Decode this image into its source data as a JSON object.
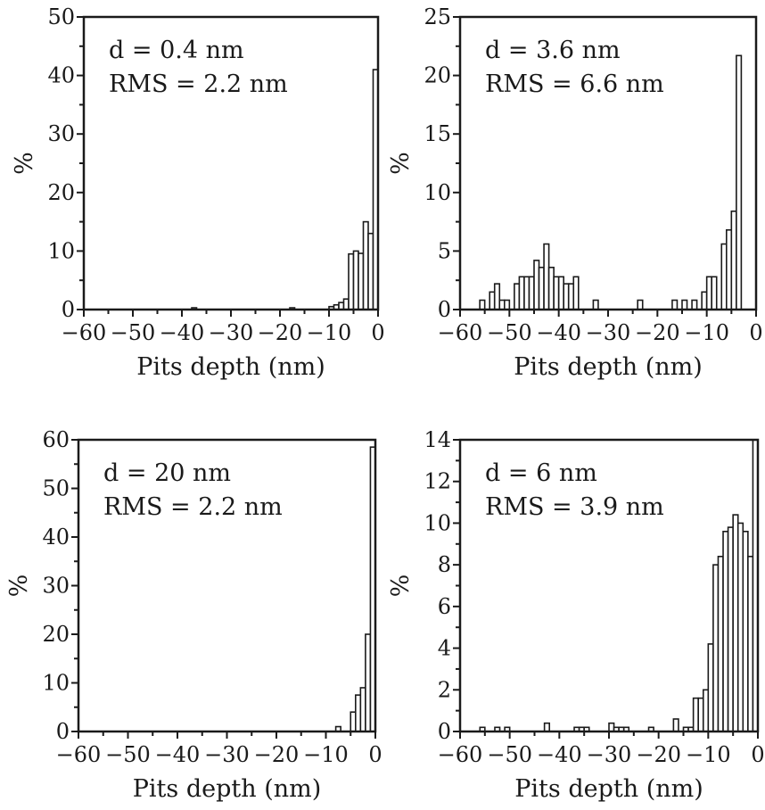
{
  "chart_data": [
    {
      "type": "bar",
      "annotation": [
        "d = 0.4 nm",
        "RMS = 2.2 nm"
      ],
      "xlabel": "Pits depth (nm)",
      "ylabel": "%",
      "xlim": [
        -60,
        0
      ],
      "ylim": [
        0,
        50
      ],
      "xticks": [
        -60,
        -50,
        -40,
        -30,
        -20,
        -10,
        0
      ],
      "yticks": [
        0,
        10,
        20,
        30,
        40,
        50
      ],
      "x_tick_labels": [
        "−60",
        "−50",
        "−40",
        "−30",
        "−20",
        "−10",
        "0"
      ],
      "y_tick_labels": [
        "0",
        "10",
        "20",
        "30",
        "40",
        "50"
      ],
      "bin_width": 1,
      "x": [
        -38,
        -18,
        -10,
        -9,
        -8,
        -7,
        -6,
        -5,
        -4,
        -3,
        -2,
        -1
      ],
      "values": [
        0.3,
        0.3,
        0.5,
        0.8,
        1.2,
        1.8,
        9.5,
        10,
        9.6,
        15,
        13,
        41
      ]
    },
    {
      "type": "bar",
      "annotation": [
        "d = 3.6 nm",
        "RMS = 6.6 nm"
      ],
      "xlabel": "Pits depth (nm)",
      "ylabel": "%",
      "xlim": [
        -60,
        0
      ],
      "ylim": [
        0,
        25
      ],
      "xticks": [
        -60,
        -50,
        -40,
        -30,
        -20,
        -10,
        0
      ],
      "yticks": [
        0,
        5,
        10,
        15,
        20,
        25
      ],
      "x_tick_labels": [
        "−60",
        "−50",
        "−40",
        "−30",
        "−20",
        "−10",
        "0"
      ],
      "y_tick_labels": [
        "0",
        "5",
        "10",
        "15",
        "20",
        "25"
      ],
      "bin_width": 1,
      "x": [
        -56,
        -54,
        -53,
        -52,
        -51,
        -49,
        -48,
        -47,
        -46,
        -45,
        -44,
        -43,
        -42,
        -41,
        -40,
        -39,
        -38,
        -37,
        -33,
        -24,
        -17,
        -15,
        -13,
        -11,
        -10,
        -9,
        -7,
        -6,
        -5,
        -4
      ],
      "values": [
        0.8,
        1.5,
        2.2,
        0.8,
        0.8,
        2.2,
        2.8,
        2.8,
        2.8,
        4.2,
        3.6,
        5.6,
        3.6,
        2.8,
        2.8,
        2.2,
        2.2,
        2.8,
        0.8,
        0.8,
        0.8,
        0.8,
        0.8,
        1.5,
        2.8,
        2.8,
        5.6,
        6.8,
        8.4,
        21.7
      ]
    },
    {
      "type": "bar",
      "annotation": [
        "d = 20 nm",
        "RMS = 2.2 nm"
      ],
      "xlabel": "Pits depth (nm)",
      "ylabel": "%",
      "xlim": [
        -60,
        0
      ],
      "ylim": [
        0,
        60
      ],
      "xticks": [
        -60,
        -50,
        -40,
        -30,
        -20,
        -10,
        0
      ],
      "yticks": [
        0,
        10,
        20,
        30,
        40,
        50,
        60
      ],
      "x_tick_labels": [
        "−60",
        "−50",
        "−40",
        "−30",
        "−20",
        "−10",
        "0"
      ],
      "y_tick_labels": [
        "0",
        "10",
        "20",
        "30",
        "40",
        "50",
        "60"
      ],
      "bin_width": 1,
      "x": [
        -8,
        -5,
        -4,
        -3,
        -2,
        -1
      ],
      "values": [
        1,
        4,
        7.5,
        9,
        20,
        58.5
      ]
    },
    {
      "type": "bar",
      "annotation": [
        "d = 6 nm",
        "RMS = 3.9 nm"
      ],
      "xlabel": "Pits depth (nm)",
      "ylabel": "%",
      "xlim": [
        -60,
        0
      ],
      "ylim": [
        0,
        14
      ],
      "xticks": [
        -60,
        -50,
        -40,
        -30,
        -20,
        -10,
        0
      ],
      "yticks": [
        0,
        2,
        4,
        6,
        8,
        10,
        12,
        14
      ],
      "x_tick_labels": [
        "−60",
        "−50",
        "−40",
        "−30",
        "−20",
        "−10",
        "0"
      ],
      "y_tick_labels": [
        "0",
        "2",
        "4",
        "6",
        "8",
        "10",
        "12",
        "14"
      ],
      "bin_width": 1,
      "x": [
        -56,
        -53,
        -51,
        -43,
        -37,
        -36,
        -35,
        -30,
        -29,
        -28,
        -27,
        -22,
        -17,
        -15,
        -14,
        -13,
        -12,
        -11,
        -10,
        -9,
        -8,
        -7,
        -6,
        -5,
        -4,
        -3,
        -2,
        -1
      ],
      "values": [
        0.2,
        0.2,
        0.2,
        0.4,
        0.2,
        0.2,
        0.2,
        0.4,
        0.2,
        0.2,
        0.2,
        0.2,
        0.6,
        0.2,
        0.2,
        1.6,
        1.6,
        2.0,
        4.2,
        8.0,
        8.4,
        9.6,
        9.8,
        10.4,
        10.0,
        9.6,
        8.4,
        14.0
      ]
    }
  ]
}
